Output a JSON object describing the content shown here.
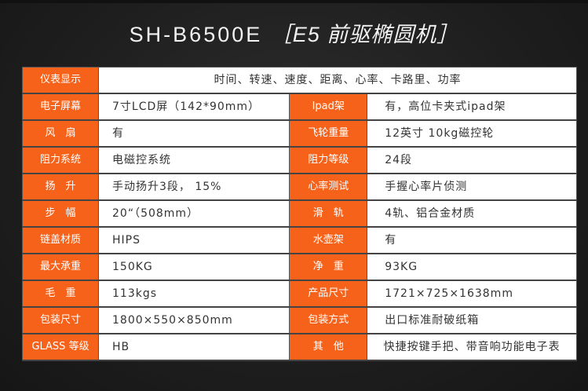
{
  "title": {
    "model": "SH-B6500E",
    "desc": "［E5 前驱椭圆机］"
  },
  "header_row": {
    "label": "仪表显示",
    "value": "时间、转速、速度、距离、心率、卡路里、功率"
  },
  "rows": [
    {
      "k1": "电子屏幕",
      "v1": "7寸LCD屏（142*90mm）",
      "k2": "Ipad架",
      "v2": "有，高位卡夹式ipad架"
    },
    {
      "k1": "风　扇",
      "v1": "有",
      "k2": "飞轮重量",
      "v2": "12英寸 10kg磁控轮"
    },
    {
      "k1": "阻力系统",
      "v1": "电磁控系统",
      "k2": "阻力等级",
      "v2": "24段"
    },
    {
      "k1": "扬　升",
      "v1": "手动扬升3段， 15%",
      "k2": "心率测试",
      "v2": "手握心率片侦测"
    },
    {
      "k1": "步　幅",
      "v1": "20“（508mm）",
      "k2": "滑　轨",
      "v2": "4轨、铝合金材质"
    },
    {
      "k1": "链盖材质",
      "v1": "HIPS",
      "k2": "水壶架",
      "v2": "有"
    },
    {
      "k1": "最大承重",
      "v1": "150KG",
      "k2": "净　重",
      "v2": "93KG"
    },
    {
      "k1": "毛　重",
      "v1": "113kgs",
      "k2": "产品尺寸",
      "v2": "1721×725×1638mm"
    },
    {
      "k1": "包装尺寸",
      "v1": "1800×550×850mm",
      "k2": "包装方式",
      "v2": "出口标准耐破纸箱"
    },
    {
      "k1": "GLASS 等级",
      "v1": "HB",
      "k2": "其　他",
      "v2": "快捷按键手把、带音响功能电子表"
    }
  ],
  "colors": {
    "accent": "#f7621a",
    "background": "#1e1e1e"
  }
}
